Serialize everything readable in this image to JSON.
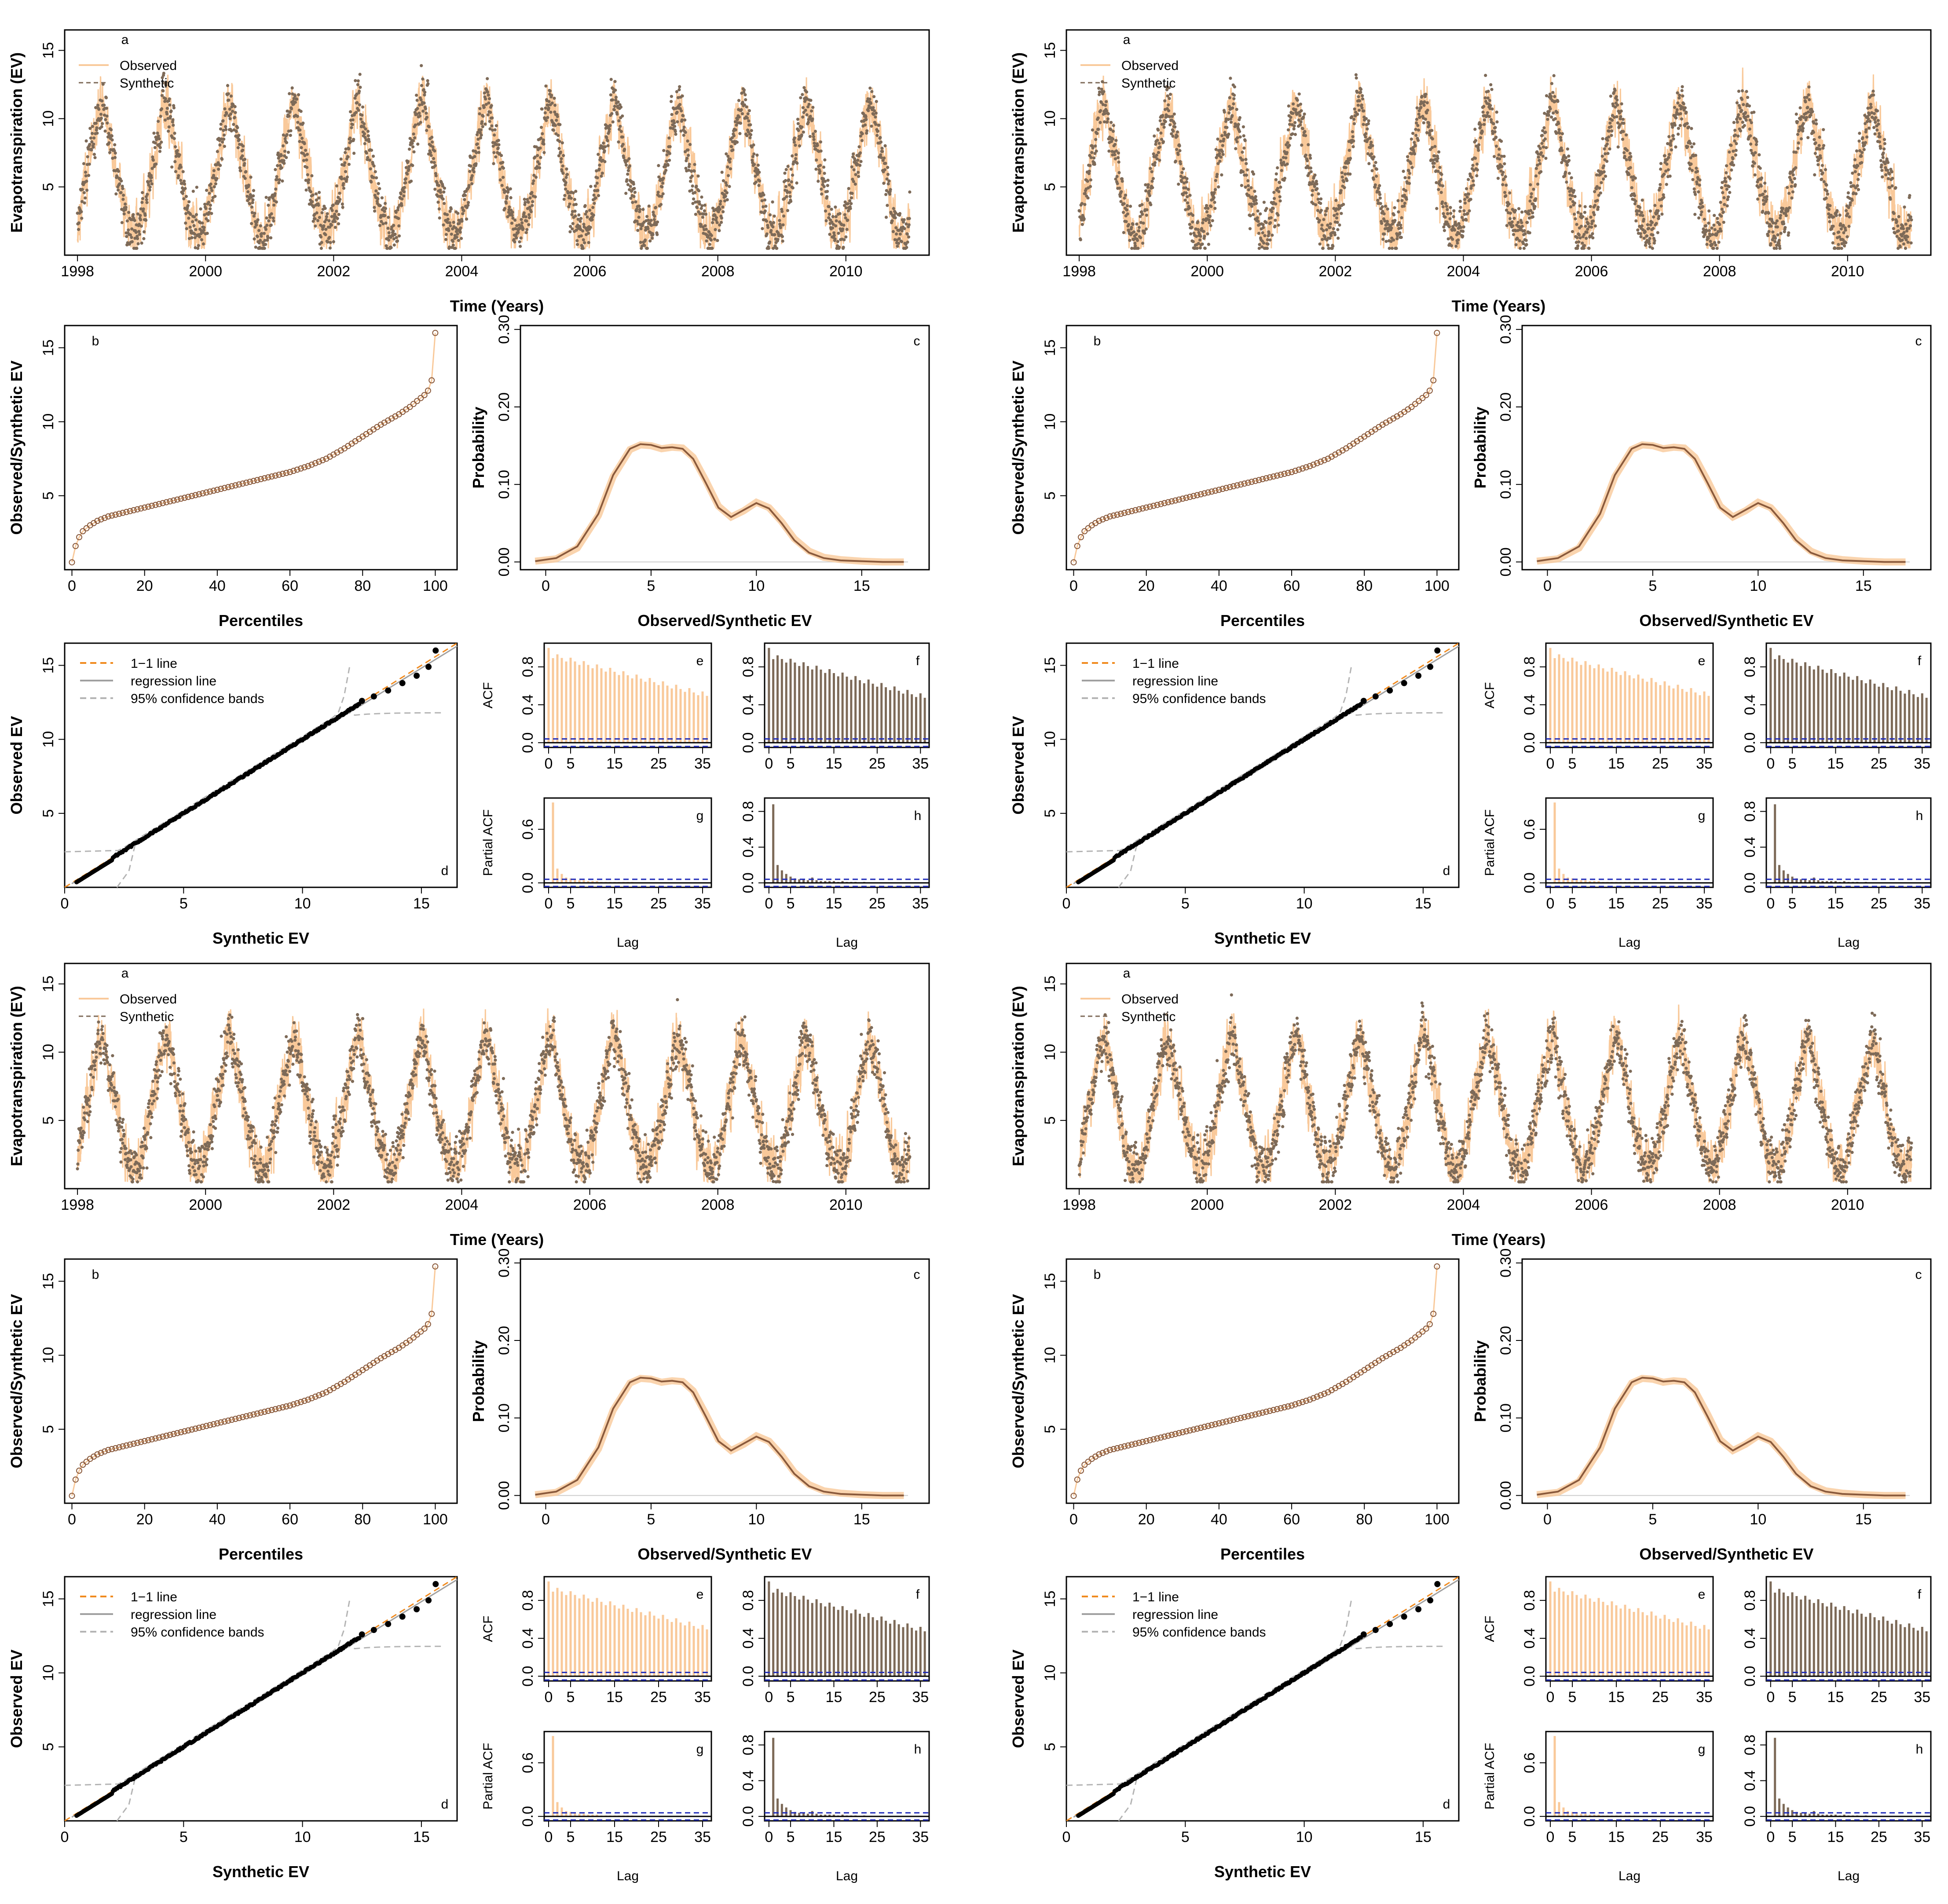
{
  "figure": {
    "blocks": [
      {
        "name": "block-1",
        "seed": 11
      },
      {
        "name": "block-2",
        "seed": 23
      },
      {
        "name": "block-3",
        "seed": 37
      },
      {
        "name": "block-4",
        "seed": 53
      }
    ]
  },
  "colors": {
    "observed": "#f9c99a",
    "synthetic": "#7d6a58",
    "density_synthetic": "#8a5a3c",
    "one_to_one": "#f08a1e",
    "regression": "#a0a0a0",
    "confidence": "#b4b4b4",
    "acf_band": "#1f2ab8",
    "points": "#000000"
  },
  "chart_data": [
    {
      "panel": "a",
      "type": "line",
      "title": "",
      "xlabel": "Time (Years)",
      "ylabel": "Evapotranspiration (EV)",
      "xlim": [
        1997.8,
        2011.3
      ],
      "ylim": [
        0,
        16.5
      ],
      "x_ticks": [
        "1998",
        "2000",
        "2002",
        "2004",
        "2006",
        "2008",
        "2010"
      ],
      "y_ticks": [
        "5",
        "10",
        "15"
      ],
      "series": [
        {
          "name": "Observed",
          "style": "line",
          "description": "daily observed EV, 1998-2011, annual cycle peaking ~10-15 mid-year, troughs ~2-4"
        },
        {
          "name": "Synthetic",
          "style": "points",
          "description": "daily synthetic EV following the same seasonal cycle"
        }
      ],
      "seasonal_model": {
        "start_year": 1998,
        "end_year": 2011,
        "base": 5.5,
        "amplitude": 4.0,
        "peak_phase_year_fraction": 0.38,
        "noise": 1.6,
        "min": 0.5,
        "max": 16
      }
    },
    {
      "panel": "b",
      "type": "line",
      "xlabel": "Percentiles",
      "ylabel": "Observed/Synthetic EV",
      "xlim": [
        -2,
        106
      ],
      "ylim": [
        0,
        16.5
      ],
      "x_ticks": [
        "0",
        "20",
        "40",
        "60",
        "80",
        "100"
      ],
      "y_ticks": [
        "5",
        "10",
        "15"
      ],
      "percentiles": [
        0,
        1,
        2,
        3,
        5,
        7,
        10,
        15,
        20,
        25,
        30,
        35,
        40,
        45,
        50,
        55,
        60,
        65,
        70,
        75,
        80,
        85,
        90,
        93,
        95,
        97,
        98,
        99,
        100
      ],
      "values": [
        0.5,
        1.6,
        2.2,
        2.6,
        3.0,
        3.3,
        3.6,
        3.9,
        4.2,
        4.5,
        4.8,
        5.1,
        5.4,
        5.7,
        6.0,
        6.3,
        6.6,
        7.0,
        7.5,
        8.2,
        9.0,
        9.8,
        10.5,
        11.0,
        11.4,
        11.8,
        12.1,
        12.8,
        16.0
      ]
    },
    {
      "panel": "c",
      "type": "line",
      "xlabel": "Observed/Synthetic EV",
      "ylabel": "Probability",
      "xlim": [
        -1.2,
        18.2
      ],
      "ylim": [
        -0.01,
        0.305
      ],
      "x_ticks": [
        "0",
        "5",
        "10",
        "15"
      ],
      "y_ticks": [
        "0.00",
        "0.10",
        "0.20",
        "0.30"
      ],
      "x": [
        -0.5,
        0.5,
        1.5,
        2.5,
        3.2,
        4.0,
        4.5,
        5.0,
        5.5,
        6.0,
        6.5,
        7.0,
        7.6,
        8.2,
        8.8,
        9.4,
        10.0,
        10.6,
        11.2,
        11.8,
        12.5,
        13.2,
        14.0,
        15.0,
        16.0,
        17.0
      ],
      "series": [
        {
          "name": "Observed",
          "values": [
            0.001,
            0.004,
            0.018,
            0.06,
            0.11,
            0.145,
            0.151,
            0.15,
            0.146,
            0.148,
            0.147,
            0.135,
            0.105,
            0.072,
            0.058,
            0.066,
            0.077,
            0.07,
            0.052,
            0.03,
            0.014,
            0.006,
            0.003,
            0.001,
            0.0,
            0.0
          ]
        },
        {
          "name": "Synthetic",
          "values": [
            0.001,
            0.005,
            0.02,
            0.062,
            0.112,
            0.146,
            0.152,
            0.151,
            0.147,
            0.148,
            0.146,
            0.133,
            0.102,
            0.07,
            0.058,
            0.067,
            0.076,
            0.069,
            0.05,
            0.028,
            0.012,
            0.005,
            0.002,
            0.001,
            0.0,
            0.0
          ]
        }
      ]
    },
    {
      "panel": "d",
      "type": "scatter",
      "xlabel": "Synthetic EV",
      "ylabel": "Observed EV",
      "xlim": [
        0,
        16.5
      ],
      "ylim": [
        0,
        16.5
      ],
      "x_ticks": [
        "0",
        "5",
        "10",
        "15"
      ],
      "y_ticks": [
        "5",
        "10",
        "15"
      ],
      "legend": [
        "1−1 line",
        "regression line",
        "95% confidence bands"
      ],
      "qq_tail": [
        [
          12.5,
          12.6
        ],
        [
          13.0,
          12.9
        ],
        [
          13.6,
          13.3
        ],
        [
          14.2,
          13.8
        ],
        [
          14.8,
          14.3
        ],
        [
          15.3,
          14.9
        ],
        [
          15.6,
          16.0
        ]
      ]
    },
    {
      "panel": "e",
      "type": "bar",
      "ylabel": "ACF",
      "xlim": [
        -1,
        37
      ],
      "ylim": [
        -0.05,
        1.05
      ],
      "x_ticks": [
        "0",
        "5",
        "15",
        "25",
        "35"
      ],
      "y_ticks": [
        "0.0",
        "0.4",
        "0.8"
      ],
      "acf_start": 0.93,
      "acf_end": 0.5,
      "significance": 0.04
    },
    {
      "panel": "f",
      "type": "bar",
      "ylabel": "",
      "xlim": [
        -1,
        37
      ],
      "ylim": [
        -0.05,
        1.05
      ],
      "x_ticks": [
        "0",
        "5",
        "15",
        "25",
        "35"
      ],
      "y_ticks": [
        "0.0",
        "0.4",
        "0.8"
      ],
      "acf_start": 0.92,
      "acf_end": 0.48,
      "significance": 0.04
    },
    {
      "panel": "g",
      "type": "bar",
      "ylabel": "Partial ACF",
      "xlabel": "Lag",
      "xlim": [
        -1,
        37
      ],
      "ylim": [
        -0.05,
        0.95
      ],
      "x_ticks": [
        "0",
        "5",
        "15",
        "25",
        "35"
      ],
      "y_ticks": [
        "0.0",
        "0.6"
      ],
      "pacf": [
        0.9,
        0.16,
        0.1,
        0.06,
        0.05,
        0.04,
        0.03,
        0.03,
        0.02,
        0.02,
        0.02,
        0.01,
        0.01,
        0.01,
        0.01,
        0.01,
        0.01,
        0.01,
        0.01,
        0.0,
        0.0,
        0.0,
        0.0,
        0.0,
        0.0,
        0.0,
        0.0,
        0.0,
        0.0,
        0.0,
        0.0,
        0.0,
        0.0,
        0.0,
        0.0,
        0.0
      ],
      "significance": 0.04
    },
    {
      "panel": "h",
      "type": "bar",
      "ylabel": "",
      "xlabel": "Lag",
      "xlim": [
        -1,
        37
      ],
      "ylim": [
        -0.05,
        0.95
      ],
      "x_ticks": [
        "0",
        "5",
        "15",
        "25",
        "35"
      ],
      "y_ticks": [
        "0.0",
        "0.4",
        "0.8"
      ],
      "pacf": [
        0.88,
        0.2,
        0.14,
        0.1,
        0.07,
        0.05,
        0.04,
        0.04,
        0.03,
        0.06,
        0.03,
        0.02,
        0.02,
        0.02,
        0.02,
        0.01,
        0.02,
        0.01,
        0.01,
        0.01,
        0.0,
        0.01,
        0.0,
        0.0,
        0.0,
        0.0,
        0.0,
        0.0,
        0.0,
        0.0,
        0.0,
        0.0,
        0.0,
        0.0,
        0.0,
        0.0
      ],
      "significance": 0.04
    }
  ],
  "legend_a": {
    "observed": "Observed",
    "synthetic": "Synthetic"
  }
}
